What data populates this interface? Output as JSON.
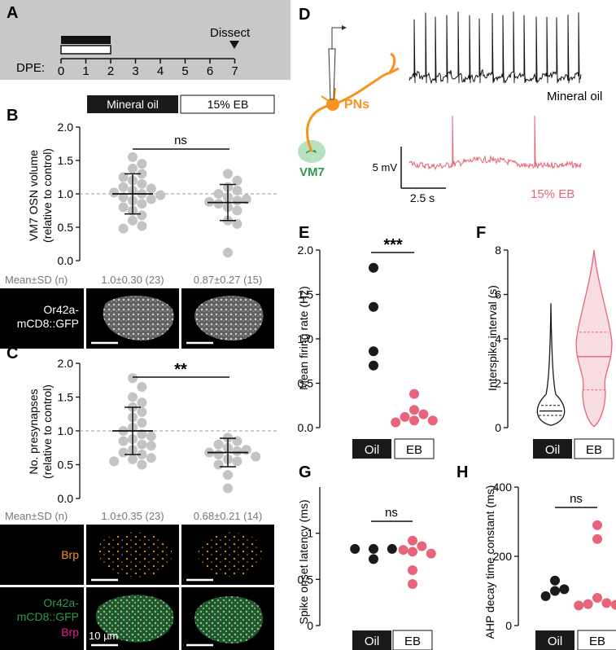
{
  "colors": {
    "oil": "#1a1a1a",
    "eb": "#e8647a",
    "eb_fill": "#f8dde2",
    "gray_point": "#c4c4c4",
    "panel_bg": "#c8c8c8",
    "orange": "#f7931e",
    "green": "#2e9a4e",
    "magenta": "#e8198b"
  },
  "panel_A": {
    "letter": "A",
    "dpe_label": "DPE:",
    "ticks": [
      "0",
      "1",
      "2",
      "3",
      "4",
      "5",
      "6",
      "7"
    ],
    "dissect_label": "Dissect"
  },
  "legend": {
    "oil_label": "Mineral oil",
    "eb_label": "15% EB"
  },
  "panel_B": {
    "letter": "B",
    "ylabel_line1": "VM7 OSN volume",
    "ylabel_line2": "(relative to control)",
    "yticks": [
      "0.0",
      "0.5",
      "1.0",
      "1.5",
      "2.0"
    ],
    "sig": "ns",
    "stats_label": "Mean±SD (n)",
    "stats_oil": "1.0±0.30 (23)",
    "stats_eb": "0.87±0.27 (15)",
    "image_label_line1": "Or42a-",
    "image_label_line2": "mCD8::GFP"
  },
  "panel_C": {
    "letter": "C",
    "ylabel_line1": "No. presynapses",
    "ylabel_line2": "(relative to control)",
    "yticks": [
      "0.0",
      "0.5",
      "1.0",
      "1.5",
      "2.0"
    ],
    "sig": "**",
    "stats_label": "Mean±SD (n)",
    "stats_oil": "1.0±0.35 (23)",
    "stats_eb": "0.68±0.21 (14)",
    "brp_label": "Brp",
    "merge_line1": "Or42a-",
    "merge_line2": "mCD8::GFP",
    "merge_line3": "Brp",
    "scale_label": "10 µm"
  },
  "panel_D": {
    "letter": "D",
    "pn_label": "PNs",
    "vm7_label": "VM7",
    "oil_trace_label": "Mineral oil",
    "eb_trace_label": "15% EB",
    "scale_v": "5 mV",
    "scale_t": "2.5 s"
  },
  "xcat": {
    "oil": "Oil",
    "eb": "EB"
  },
  "chart_data": [
    {
      "panel": "B",
      "type": "scatter",
      "ylabel": "VM7 OSN volume (relative to control)",
      "ylim": [
        0,
        2.0
      ],
      "reference_line": 1.0,
      "significance": "ns",
      "series": [
        {
          "name": "Mineral oil",
          "mean": 1.0,
          "sd": 0.3,
          "n": 23,
          "values": [
            1.55,
            1.45,
            1.38,
            1.3,
            1.25,
            1.2,
            1.15,
            1.1,
            1.08,
            1.05,
            1.02,
            1.0,
            0.98,
            0.95,
            0.92,
            0.9,
            0.85,
            0.8,
            0.75,
            0.68,
            0.6,
            0.52,
            0.48
          ]
        },
        {
          "name": "15% EB",
          "mean": 0.87,
          "sd": 0.27,
          "n": 15,
          "values": [
            1.3,
            1.2,
            1.1,
            1.05,
            1.0,
            0.95,
            0.92,
            0.9,
            0.88,
            0.85,
            0.8,
            0.75,
            0.6,
            0.55,
            0.12
          ]
        }
      ]
    },
    {
      "panel": "C",
      "type": "scatter",
      "ylabel": "No. presynapses (relative to control)",
      "ylim": [
        0,
        2.0
      ],
      "reference_line": 1.0,
      "significance": "**",
      "series": [
        {
          "name": "Mineral oil",
          "mean": 1.0,
          "sd": 0.35,
          "n": 23,
          "values": [
            1.78,
            1.65,
            1.5,
            1.42,
            1.35,
            1.28,
            1.2,
            1.12,
            1.05,
            1.0,
            0.95,
            0.92,
            0.88,
            0.85,
            0.8,
            0.78,
            0.72,
            0.68,
            0.65,
            0.6,
            0.58,
            0.55,
            0.5
          ]
        },
        {
          "name": "15% EB",
          "mean": 0.68,
          "sd": 0.21,
          "n": 14,
          "values": [
            0.9,
            0.85,
            0.8,
            0.75,
            0.72,
            0.7,
            0.68,
            0.65,
            0.62,
            0.58,
            0.55,
            0.5,
            0.35,
            0.15
          ]
        }
      ]
    },
    {
      "panel": "E",
      "type": "scatter",
      "ylabel": "Mean firing rate (Hz)",
      "ylim": [
        0,
        2.0
      ],
      "yticks": [
        "0.0",
        "0.5",
        "1.0",
        "1.5",
        "2.0"
      ],
      "significance": "***",
      "categories": [
        "Oil",
        "EB"
      ],
      "series": [
        {
          "name": "Oil",
          "values": [
            1.8,
            1.36,
            0.86,
            0.7
          ]
        },
        {
          "name": "EB",
          "values": [
            0.38,
            0.2,
            0.15,
            0.12,
            0.08,
            0.08,
            0.06
          ]
        }
      ]
    },
    {
      "panel": "F",
      "type": "violin",
      "ylabel": "Interspike interval (s)",
      "ylim": [
        0,
        8
      ],
      "yticks": [
        "0",
        "2",
        "4",
        "6",
        "8"
      ],
      "categories": [
        "Oil",
        "EB"
      ],
      "series": [
        {
          "name": "Oil",
          "median": 0.75,
          "q1": 0.55,
          "q3": 1.0,
          "max": 5.6
        },
        {
          "name": "EB",
          "median": 3.2,
          "q1": 1.7,
          "q3": 4.3,
          "max": 8.0
        }
      ]
    },
    {
      "panel": "G",
      "type": "scatter",
      "ylabel": "Spike onset latency (ms)",
      "ylim": [
        0,
        1.5
      ],
      "yticks": [
        "0",
        "0.5",
        "1"
      ],
      "significance": "ns",
      "categories": [
        "Oil",
        "EB"
      ],
      "series": [
        {
          "name": "Oil",
          "values": [
            0.83,
            0.83,
            0.83,
            0.72
          ]
        },
        {
          "name": "EB",
          "values": [
            0.92,
            0.86,
            0.82,
            0.8,
            0.78,
            0.6,
            0.45
          ]
        }
      ]
    },
    {
      "panel": "H",
      "type": "scatter",
      "ylabel": "AHP decay time constant (ms)",
      "ylim": [
        0,
        400
      ],
      "yticks": [
        "0",
        "200",
        "400"
      ],
      "significance": "ns",
      "categories": [
        "Oil",
        "EB"
      ],
      "series": [
        {
          "name": "Oil",
          "values": [
            130,
            105,
            100,
            85
          ]
        },
        {
          "name": "EB",
          "values": [
            290,
            250,
            80,
            65,
            62,
            60,
            58
          ]
        }
      ]
    }
  ]
}
